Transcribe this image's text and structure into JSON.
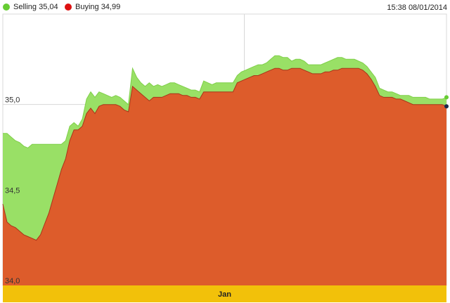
{
  "legend": {
    "selling_label": "Selling 35,04",
    "buying_label": "Buying 34,99"
  },
  "timestamp": "15:38 08/01/2014",
  "colors": {
    "selling": "#99e066",
    "buying": "#dd5c2b",
    "selling_dot": "#66cc33",
    "buying_dot": "#dd1111",
    "axis_band": "#f2c10a"
  },
  "chart_data": {
    "type": "area",
    "ylim": [
      34.0,
      35.5
    ],
    "yticks": [
      {
        "value": 34.0,
        "label": "34,0"
      },
      {
        "value": 34.5,
        "label": "34,5"
      },
      {
        "value": 35.0,
        "label": "35,0"
      }
    ],
    "x_category": "Jan",
    "grid": true,
    "legend_position": "top-left",
    "x": [
      0,
      1,
      2,
      3,
      4,
      5,
      6,
      7,
      8,
      9,
      10,
      11,
      12,
      13,
      14,
      15,
      16,
      17,
      18,
      19,
      20,
      21,
      22,
      23,
      24,
      25,
      26,
      27,
      28,
      29,
      30,
      31,
      32,
      33,
      34,
      35,
      36,
      37,
      38,
      39,
      40,
      41,
      42,
      43,
      44,
      45,
      46,
      47,
      48,
      49,
      50,
      51,
      52,
      53,
      54,
      55,
      56,
      57,
      58,
      59,
      60,
      61,
      62,
      63,
      64,
      65,
      66,
      67,
      68,
      69,
      70,
      71,
      72,
      73,
      74,
      75,
      76,
      77,
      78,
      79,
      80,
      81,
      82,
      83,
      84,
      85,
      86,
      87,
      88,
      89,
      90,
      91,
      92,
      93,
      94,
      95,
      96,
      97,
      98,
      99,
      100,
      101,
      102,
      103,
      104,
      105,
      106
    ],
    "series": [
      {
        "name": "Selling",
        "values": [
          34.84,
          34.84,
          34.82,
          34.8,
          34.79,
          34.77,
          34.76,
          34.78,
          34.78,
          34.78,
          34.78,
          34.78,
          34.78,
          34.78,
          34.78,
          34.8,
          34.88,
          34.9,
          34.88,
          34.92,
          35.03,
          35.07,
          35.04,
          35.07,
          35.06,
          35.05,
          35.04,
          35.05,
          35.04,
          35.02,
          35.0,
          35.2,
          35.15,
          35.12,
          35.1,
          35.12,
          35.1,
          35.11,
          35.1,
          35.11,
          35.12,
          35.12,
          35.11,
          35.1,
          35.09,
          35.08,
          35.08,
          35.07,
          35.13,
          35.12,
          35.11,
          35.12,
          35.12,
          35.12,
          35.12,
          35.12,
          35.16,
          35.18,
          35.19,
          35.2,
          35.21,
          35.22,
          35.22,
          35.23,
          35.25,
          35.27,
          35.27,
          35.26,
          35.26,
          35.24,
          35.25,
          35.25,
          35.24,
          35.22,
          35.22,
          35.22,
          35.22,
          35.23,
          35.24,
          35.25,
          35.26,
          35.26,
          35.25,
          35.25,
          35.25,
          35.24,
          35.23,
          35.21,
          35.18,
          35.15,
          35.09,
          35.08,
          35.07,
          35.07,
          35.06,
          35.05,
          35.05,
          35.05,
          35.04,
          35.04,
          35.04,
          35.04,
          35.03,
          35.03,
          35.03,
          35.03,
          35.04
        ]
      },
      {
        "name": "Buying",
        "values": [
          34.45,
          34.35,
          34.33,
          34.32,
          34.3,
          34.28,
          34.27,
          34.26,
          34.25,
          34.28,
          34.34,
          34.4,
          34.48,
          34.56,
          34.64,
          34.7,
          34.8,
          34.86,
          34.86,
          34.88,
          34.95,
          34.98,
          34.95,
          34.99,
          35.0,
          35.0,
          35.0,
          35.0,
          34.99,
          34.97,
          34.96,
          35.1,
          35.08,
          35.06,
          35.04,
          35.02,
          35.04,
          35.04,
          35.04,
          35.05,
          35.06,
          35.06,
          35.06,
          35.05,
          35.05,
          35.04,
          35.04,
          35.03,
          35.07,
          35.07,
          35.07,
          35.07,
          35.07,
          35.07,
          35.07,
          35.07,
          35.12,
          35.13,
          35.14,
          35.15,
          35.16,
          35.16,
          35.17,
          35.18,
          35.19,
          35.2,
          35.2,
          35.19,
          35.19,
          35.2,
          35.2,
          35.2,
          35.19,
          35.18,
          35.17,
          35.17,
          35.17,
          35.18,
          35.18,
          35.19,
          35.19,
          35.2,
          35.2,
          35.2,
          35.2,
          35.2,
          35.19,
          35.17,
          35.14,
          35.1,
          35.05,
          35.04,
          35.04,
          35.04,
          35.03,
          35.03,
          35.02,
          35.01,
          35.0,
          35.0,
          35.0,
          35.0,
          35.0,
          35.0,
          35.0,
          35.0,
          34.99
        ]
      }
    ]
  }
}
